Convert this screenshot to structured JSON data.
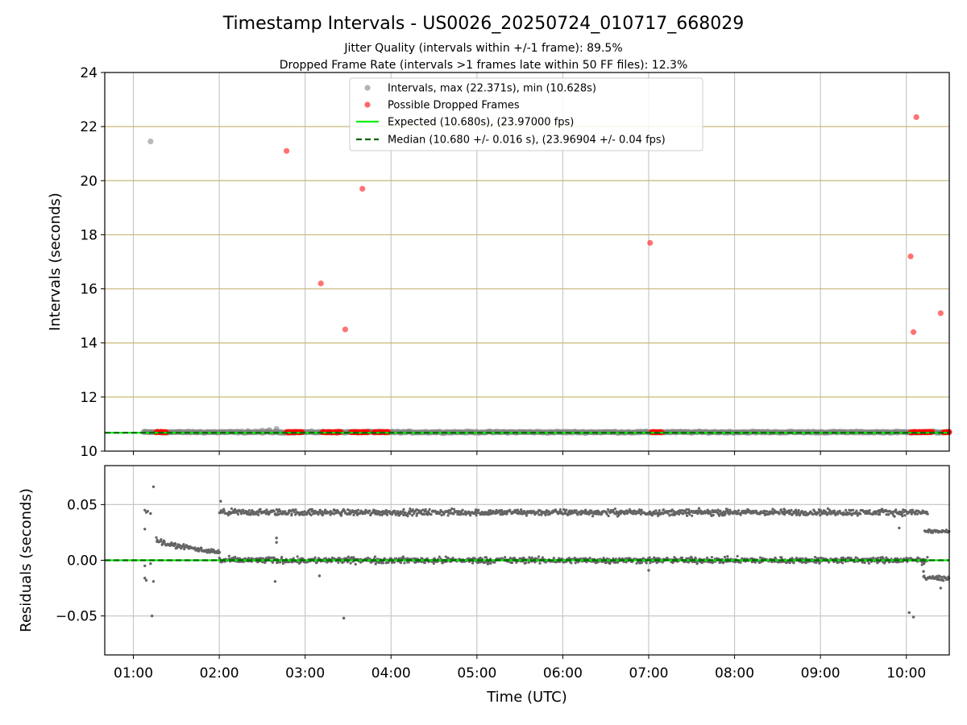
{
  "figure": {
    "title": "Timestamp Intervals - US0026_20250724_010717_668029",
    "subtitle1": "Jitter Quality (intervals within +/-1 frame): 89.5%",
    "subtitle2": "Dropped Frame Rate (intervals >1 frames late within 50 FF files): 12.3%",
    "xlabel": "Time (UTC)"
  },
  "colors": {
    "interval": "#808080",
    "dropped": "#ff0000",
    "expected": "#00ee00",
    "median": "#006400",
    "gridline_h": "#c8b878",
    "gridline_v": "#c8c8c8",
    "residual": "#646464"
  },
  "chart_data": [
    {
      "type": "scatter",
      "ylabel": "Intervals (seconds)",
      "ylim": [
        10,
        24
      ],
      "yticks": [
        10,
        12,
        14,
        16,
        18,
        20,
        22,
        24
      ],
      "xlim": [
        "00:40",
        "10:30"
      ],
      "xticks": [
        "01:00",
        "02:00",
        "03:00",
        "04:00",
        "05:00",
        "06:00",
        "07:00",
        "08:00",
        "09:00",
        "10:00"
      ],
      "grid": "on",
      "legend": {
        "position": "top-center",
        "entries": [
          "Intervals, max (22.371s), min (10.628s)",
          "Possible Dropped Frames",
          "Expected (10.680s), (23.97000 fps)",
          "Median (10.680 +/- 0.016 s), (23.96904 +/- 0.04 fps)"
        ]
      },
      "expected_line": 10.68,
      "median_line": 10.68,
      "interval_band": {
        "x_start": "01:07",
        "x_end": "10:30",
        "y_center": 10.7
      },
      "series": [
        {
          "name": "Intervals, max (22.371s), min (10.628s)",
          "points": [
            {
              "x": "01:12",
              "y": 21.45
            }
          ]
        },
        {
          "name": "Possible Dropped Frames",
          "points": [
            {
              "x": "02:47",
              "y": 21.1
            },
            {
              "x": "03:11",
              "y": 16.2
            },
            {
              "x": "03:28",
              "y": 14.5
            },
            {
              "x": "03:40",
              "y": 19.7
            },
            {
              "x": "07:01",
              "y": 17.7
            },
            {
              "x": "10:03",
              "y": 17.2
            },
            {
              "x": "10:05",
              "y": 14.4
            },
            {
              "x": "10:07",
              "y": 22.35
            },
            {
              "x": "10:24",
              "y": 15.1
            }
          ],
          "low_clusters": [
            {
              "x_start": "01:16",
              "x_end": "01:23",
              "y": 10.7
            },
            {
              "x_start": "02:47",
              "x_end": "02:58",
              "y": 10.7
            },
            {
              "x_start": "03:12",
              "x_end": "03:25",
              "y": 10.7
            },
            {
              "x_start": "03:32",
              "x_end": "03:44",
              "y": 10.7
            },
            {
              "x_start": "03:48",
              "x_end": "03:58",
              "y": 10.7
            },
            {
              "x_start": "07:02",
              "x_end": "07:09",
              "y": 10.7
            },
            {
              "x_start": "10:03",
              "x_end": "10:18",
              "y": 10.7
            },
            {
              "x_start": "10:26",
              "x_end": "10:30",
              "y": 10.7
            }
          ]
        }
      ]
    },
    {
      "type": "scatter",
      "ylabel": "Residuals (seconds)",
      "ylim": [
        -0.085,
        0.085
      ],
      "yticks": [
        {
          "value": -0.05,
          "label": "−0.05"
        },
        {
          "value": 0.0,
          "label": "0.00"
        },
        {
          "value": 0.05,
          "label": "0.05"
        }
      ],
      "xlim": [
        "00:40",
        "10:30"
      ],
      "xticks": [
        "01:00",
        "02:00",
        "03:00",
        "04:00",
        "05:00",
        "06:00",
        "07:00",
        "08:00",
        "09:00",
        "10:00"
      ],
      "xlabel": "Time (UTC)",
      "grid": "on",
      "zero_line": 0.0,
      "bands": [
        {
          "x_start": "02:00",
          "x_end": "10:15",
          "y": 0.043,
          "spread": 0.004
        },
        {
          "x_start": "02:00",
          "x_end": "10:15",
          "y": 0.0,
          "spread": 0.004
        },
        {
          "x_start": "01:16",
          "x_end": "02:00",
          "y_start": 0.016,
          "y_end": 0.007,
          "spread": 0.003
        },
        {
          "x_start": "10:13",
          "x_end": "10:30",
          "y": 0.026,
          "spread": 0.002
        },
        {
          "x_start": "10:12",
          "x_end": "10:30",
          "y": -0.016,
          "spread": 0.003
        }
      ],
      "outliers": [
        {
          "x": "01:08",
          "y": 0.045
        },
        {
          "x": "01:09",
          "y": 0.043
        },
        {
          "x": "01:10",
          "y": 0.044
        },
        {
          "x": "01:12",
          "y": 0.042
        },
        {
          "x": "01:08",
          "y": 0.028
        },
        {
          "x": "01:14",
          "y": 0.066
        },
        {
          "x": "01:08",
          "y": -0.016
        },
        {
          "x": "01:09",
          "y": -0.018
        },
        {
          "x": "01:14",
          "y": -0.019
        },
        {
          "x": "01:13",
          "y": -0.05
        },
        {
          "x": "01:08",
          "y": -0.005
        },
        {
          "x": "01:12",
          "y": -0.003
        },
        {
          "x": "02:01",
          "y": 0.053
        },
        {
          "x": "02:40",
          "y": 0.02
        },
        {
          "x": "02:40",
          "y": 0.016
        },
        {
          "x": "02:39",
          "y": -0.019
        },
        {
          "x": "03:10",
          "y": -0.014
        },
        {
          "x": "03:27",
          "y": -0.052
        },
        {
          "x": "07:00",
          "y": -0.009
        },
        {
          "x": "10:02",
          "y": -0.047
        },
        {
          "x": "10:05",
          "y": -0.051
        },
        {
          "x": "09:55",
          "y": 0.029
        },
        {
          "x": "10:11",
          "y": -0.004
        },
        {
          "x": "10:12",
          "y": -0.01
        },
        {
          "x": "10:24",
          "y": -0.025
        }
      ]
    }
  ]
}
